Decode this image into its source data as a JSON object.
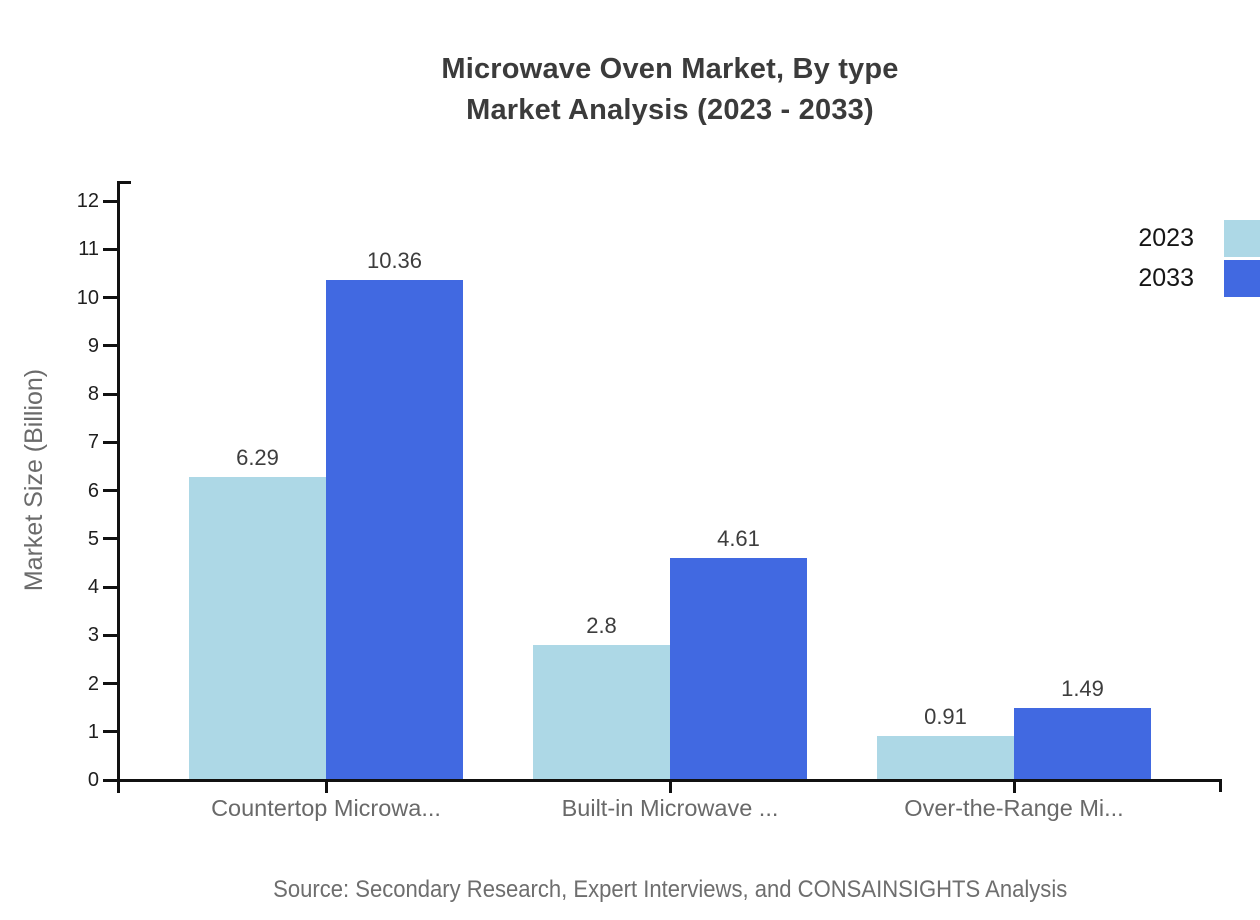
{
  "title": {
    "line1": "Microwave Oven Market, By type",
    "line2": "Market Analysis (2023 - 2033)"
  },
  "source": "Source: Secondary Research, Expert Interviews, and CONSAINSIGHTS Analysis",
  "chart_data": {
    "type": "bar",
    "title": "Microwave Oven Market, By type Market Analysis (2023 - 2033)",
    "categories": [
      "Countertop Microwa...",
      "Built-in Microwave ...",
      "Over-the-Range Mi..."
    ],
    "series": [
      {
        "name": "2023",
        "color": "#ADD8E6",
        "values": [
          6.29,
          2.8,
          0.91
        ]
      },
      {
        "name": "2033",
        "color": "#4169E1",
        "values": [
          10.36,
          4.61,
          1.49
        ]
      }
    ],
    "xlabel": "",
    "ylabel": "Market Size (Billion)",
    "ylim": [
      0,
      12
    ],
    "y_ticks": [
      0,
      1,
      2,
      3,
      4,
      5,
      6,
      7,
      8,
      9,
      10,
      11,
      12
    ],
    "grid": false,
    "legend_position": "top-right",
    "value_labels": true
  },
  "colors": {
    "series_2023": "#ADD8E6",
    "series_2033": "#4169E1",
    "axis": "#111111",
    "title_text": "#3b3b3b",
    "muted_text": "#696969"
  }
}
